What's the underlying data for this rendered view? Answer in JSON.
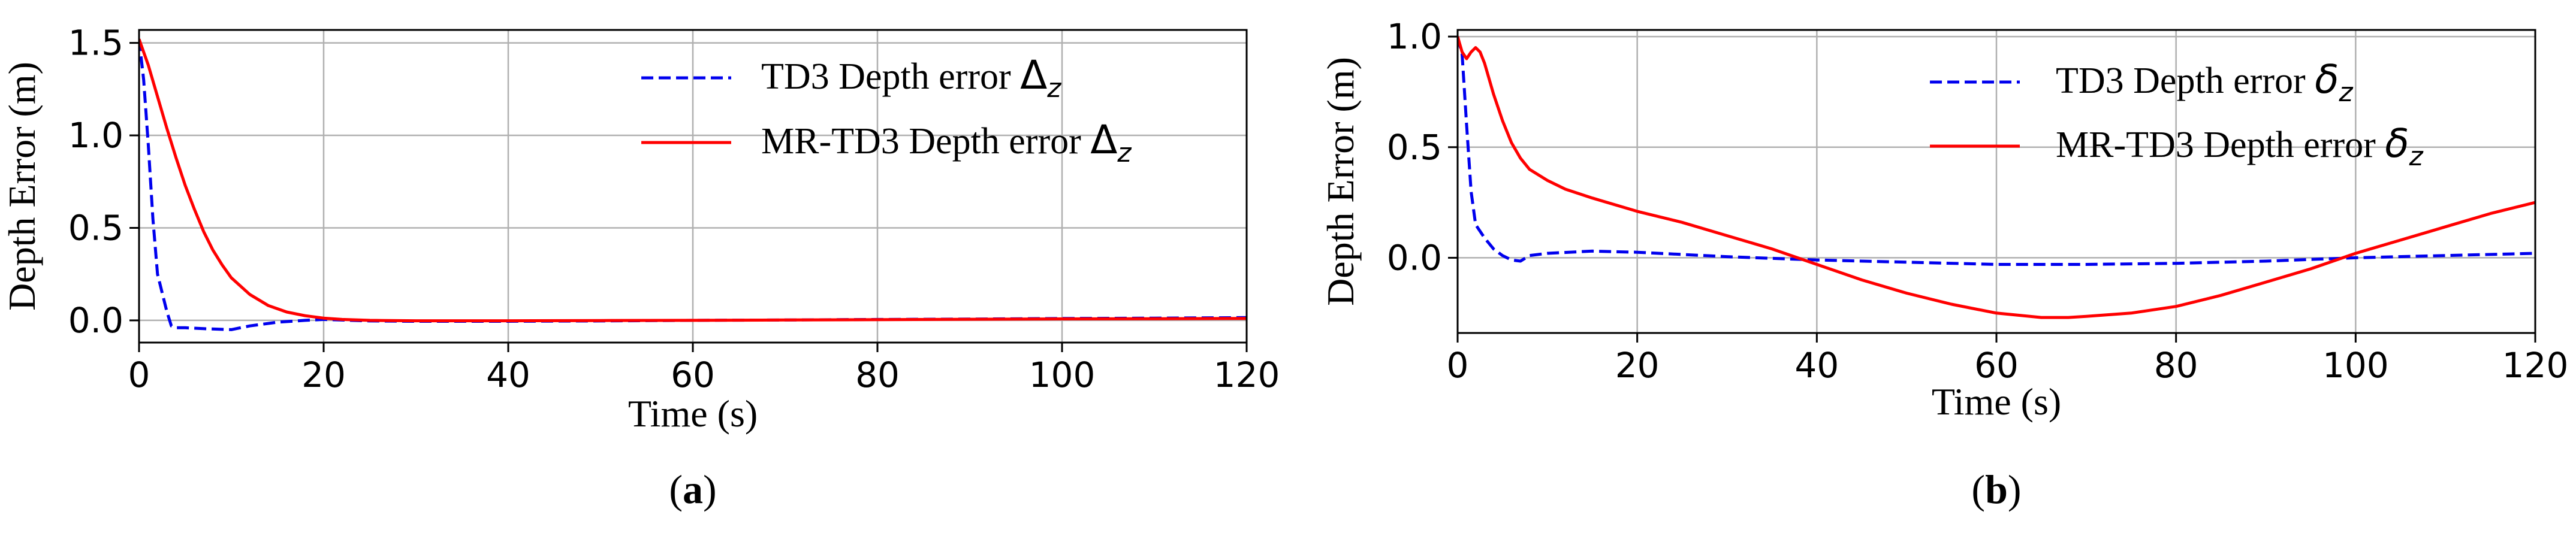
{
  "chart_data": [
    {
      "type": "line",
      "panel_label": "(a)",
      "xlabel": "Time (s)",
      "ylabel": "Depth Error (m)",
      "xlim": [
        0,
        120
      ],
      "ylim": [
        -0.12,
        1.57
      ],
      "xticks": [
        0,
        20,
        40,
        60,
        80,
        100,
        120
      ],
      "yticks": [
        0.0,
        0.5,
        1.0,
        1.5
      ],
      "xtick_labels": [
        "0",
        "20",
        "40",
        "60",
        "80",
        "100",
        "120"
      ],
      "ytick_labels": [
        "0.0",
        "0.5",
        "1.0",
        "1.5"
      ],
      "grid": true,
      "legend_position": "top-right",
      "series": [
        {
          "name": "TD3 Depth error Δz",
          "name_prefix": "TD3 Depth error ",
          "name_symbol": "Δ",
          "name_sub": "z",
          "color": "#0000ee",
          "style": "dashed",
          "x": [
            0,
            0.5,
            1,
            1.5,
            2,
            2.5,
            3,
            3.5,
            4,
            5,
            7,
            10,
            12,
            15,
            18,
            20,
            25,
            30,
            40,
            50,
            60,
            70,
            80,
            90,
            100,
            110,
            120
          ],
          "y": [
            1.52,
            1.3,
            0.95,
            0.55,
            0.25,
            0.15,
            0.05,
            -0.03,
            -0.04,
            -0.04,
            -0.045,
            -0.05,
            -0.03,
            -0.01,
            0.0,
            0.005,
            -0.003,
            -0.005,
            -0.005,
            -0.003,
            0.0,
            0.002,
            0.005,
            0.007,
            0.01,
            0.012,
            0.015
          ]
        },
        {
          "name": "MR-TD3 Depth error Δz",
          "name_prefix": "MR-TD3 Depth error ",
          "name_symbol": "Δ",
          "name_sub": "z",
          "color": "#ff0000",
          "style": "solid",
          "x": [
            0,
            1,
            2,
            3,
            4,
            5,
            6,
            7,
            8,
            9,
            10,
            12,
            14,
            16,
            18,
            20,
            22,
            25,
            30,
            40,
            50,
            60,
            70,
            80,
            90,
            100,
            110,
            120
          ],
          "y": [
            1.52,
            1.38,
            1.21,
            1.04,
            0.88,
            0.73,
            0.6,
            0.48,
            0.38,
            0.3,
            0.23,
            0.14,
            0.08,
            0.045,
            0.025,
            0.012,
            0.005,
            0.0,
            -0.002,
            -0.002,
            -0.001,
            0.0,
            0.002,
            0.004,
            0.006,
            0.008,
            0.009,
            0.01
          ]
        }
      ]
    },
    {
      "type": "line",
      "panel_label": "(b)",
      "xlabel": "Time (s)",
      "ylabel": "Depth Error (m)",
      "xlim": [
        0,
        120
      ],
      "ylim": [
        -0.34,
        1.03
      ],
      "xticks": [
        0,
        20,
        40,
        60,
        80,
        100,
        120
      ],
      "yticks": [
        0.0,
        0.5,
        1.0
      ],
      "xtick_labels": [
        "0",
        "20",
        "40",
        "60",
        "80",
        "100",
        "120"
      ],
      "ytick_labels": [
        "0.0",
        "0.5",
        "1.0"
      ],
      "grid": true,
      "legend_position": "top-right",
      "series": [
        {
          "name": "TD3 Depth error δz",
          "name_prefix": "TD3 Depth error ",
          "name_symbol": "δ",
          "name_sub": "z",
          "color": "#0000ee",
          "style": "dashed",
          "x": [
            0,
            0.5,
            1,
            1.5,
            2,
            3,
            4,
            5,
            6,
            7,
            8,
            10,
            15,
            20,
            30,
            40,
            50,
            60,
            70,
            80,
            90,
            100,
            110,
            120
          ],
          "y": [
            1.0,
            0.92,
            0.6,
            0.3,
            0.15,
            0.09,
            0.04,
            0.01,
            -0.01,
            -0.015,
            0.01,
            0.02,
            0.03,
            0.025,
            0.005,
            -0.01,
            -0.02,
            -0.03,
            -0.03,
            -0.025,
            -0.015,
            0.0,
            0.01,
            0.02
          ]
        },
        {
          "name": "MR-TD3 Depth error δz",
          "name_prefix": "MR-TD3 Depth error ",
          "name_symbol": "δ",
          "name_sub": "z",
          "color": "#ff0000",
          "style": "solid",
          "x": [
            0,
            0.5,
            1,
            1.5,
            2,
            2.5,
            3,
            4,
            5,
            6,
            7,
            8,
            10,
            12,
            15,
            20,
            25,
            30,
            35,
            40,
            45,
            50,
            55,
            60,
            65,
            68,
            70,
            75,
            80,
            85,
            90,
            95,
            100,
            105,
            110,
            115,
            120
          ],
          "y": [
            1.0,
            0.93,
            0.9,
            0.93,
            0.95,
            0.93,
            0.88,
            0.74,
            0.62,
            0.52,
            0.45,
            0.4,
            0.35,
            0.31,
            0.27,
            0.21,
            0.16,
            0.1,
            0.04,
            -0.03,
            -0.1,
            -0.16,
            -0.21,
            -0.25,
            -0.27,
            -0.27,
            -0.265,
            -0.25,
            -0.22,
            -0.17,
            -0.11,
            -0.05,
            0.02,
            0.08,
            0.14,
            0.2,
            0.25
          ]
        }
      ]
    }
  ]
}
